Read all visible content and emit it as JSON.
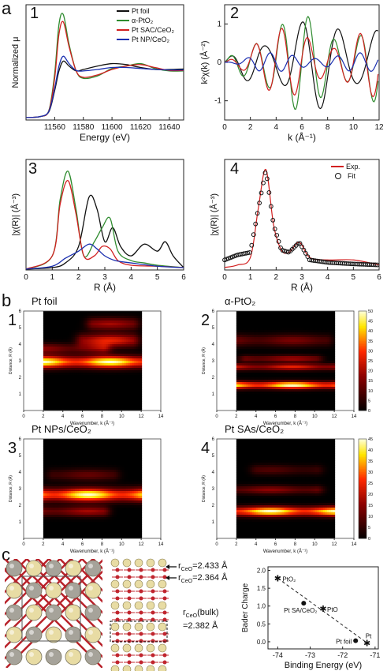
{
  "panel_a": {
    "letter": "a",
    "p1": {
      "num": "1",
      "ylabel": "Normalized μ",
      "xlabel": "Energy (eV)",
      "xticks": [
        "11560",
        "11580",
        "11600",
        "11620",
        "11640"
      ],
      "legend": [
        {
          "label": "Pt foil",
          "color": "#111111"
        },
        {
          "label": "α-PtO₂",
          "color": "#2e8b2e"
        },
        {
          "label": "Pt SAC/CeO₂",
          "color": "#d22020"
        },
        {
          "label": "Pt NP/CeO₂",
          "color": "#1a2fb0"
        }
      ]
    },
    "p2": {
      "num": "2",
      "ylabel": "k²χ(k) (Å⁻²)",
      "xlabel": "k (Å⁻¹)",
      "xticks": [
        "0",
        "2",
        "4",
        "6",
        "8",
        "10",
        "12"
      ],
      "yticks": [
        "1",
        "0",
        "-1"
      ]
    },
    "p3": {
      "num": "3",
      "ylabel": "|χ(R)| (Å⁻³)",
      "xlabel": "R (Å)",
      "xticks": [
        "0",
        "1",
        "2",
        "3",
        "4",
        "5",
        "6"
      ]
    },
    "p4": {
      "num": "4",
      "ylabel": "|χ(R)| (Å⁻³)",
      "xlabel": "R (Å)",
      "xticks": [
        "0",
        "1",
        "2",
        "3",
        "4",
        "5",
        "6"
      ],
      "legend": [
        {
          "label": "Exp.",
          "color": "#d22020"
        },
        {
          "label": "Fit",
          "color": "#111111"
        }
      ]
    }
  },
  "panel_b": {
    "letter": "b",
    "maps": [
      {
        "num": "1",
        "title": "Pt foil"
      },
      {
        "num": "2",
        "title": "α-PtO₂"
      },
      {
        "num": "3",
        "title": "Pt NPs/CeO₂"
      },
      {
        "num": "4",
        "title": "Pt SAs/CeO₂"
      }
    ],
    "xlabel": "Wavenumber, k (Å⁻¹)",
    "ylabel": "Distance, R (Å)",
    "xticks": [
      "0",
      "2",
      "4",
      "6",
      "8",
      "10",
      "12",
      "14"
    ],
    "yticks": [
      "1",
      "2",
      "3",
      "4",
      "5",
      "6"
    ],
    "colorbar_ticks": [
      "50",
      "45",
      "40",
      "35",
      "30",
      "25",
      "20",
      "15",
      "10",
      "5",
      "0"
    ],
    "colorbar_ticks_lower": [
      "45",
      "40",
      "35",
      "30",
      "25",
      "20",
      "15",
      "10",
      "5",
      "0"
    ]
  },
  "panel_c": {
    "letter": "c",
    "ann1": "r",
    "ann1_sub": "CeO",
    "ann1_val": "=2.433 Å",
    "ann2": "r",
    "ann2_sub": "CeO",
    "ann2_val": "=2.364 Å",
    "ann3": "r",
    "ann3_sub": "CeO",
    "ann3_val": "(bulk)",
    "ann3_val2": "=2.382 Å",
    "chart": {
      "ylabel": "Bader Charge",
      "xlabel": "Binding Energy (eV)",
      "xticks": [
        "-74",
        "-73",
        "-72",
        "-71"
      ],
      "yticks": [
        "0.0",
        "0.5",
        "1.0",
        "1.5",
        "2.0"
      ],
      "points": [
        {
          "label": "PtO₂",
          "marker": "star"
        },
        {
          "label": "Pt SA/CeO₂",
          "marker": "dot"
        },
        {
          "label": "PtO",
          "marker": "star"
        },
        {
          "label": "Pt foil",
          "marker": "dot"
        },
        {
          "label": "Pt",
          "marker": "star"
        }
      ]
    }
  },
  "chart_data": [
    {
      "type": "line",
      "xlabel": "Energy (eV)",
      "ylabel": "Normalized μ",
      "xlim": [
        11540,
        11650
      ],
      "series": [
        {
          "name": "Pt foil",
          "x": [
            11540,
            11550,
            11556,
            11560,
            11563,
            11566,
            11570,
            11575,
            11580,
            11590,
            11600,
            11610,
            11620,
            11630,
            11640,
            11650
          ],
          "y": [
            0.0,
            0.02,
            0.12,
            0.55,
            0.95,
            1.15,
            1.05,
            0.95,
            0.98,
            1.05,
            1.1,
            1.08,
            1.02,
            0.98,
            0.98,
            0.99
          ]
        },
        {
          "name": "α-PtO₂",
          "x": [
            11540,
            11550,
            11556,
            11560,
            11563,
            11566,
            11570,
            11575,
            11580,
            11590,
            11600,
            11610,
            11620,
            11630,
            11640,
            11650
          ],
          "y": [
            0.0,
            0.02,
            0.15,
            0.9,
            1.9,
            2.1,
            1.5,
            0.95,
            0.8,
            0.85,
            1.0,
            1.05,
            1.1,
            1.0,
            0.95,
            0.95
          ]
        },
        {
          "name": "Pt SAC/CeO₂",
          "x": [
            11540,
            11550,
            11556,
            11560,
            11563,
            11566,
            11570,
            11575,
            11580,
            11590,
            11600,
            11610,
            11620,
            11630,
            11640,
            11650
          ],
          "y": [
            0.0,
            0.02,
            0.14,
            0.8,
            1.7,
            1.95,
            1.45,
            0.95,
            0.82,
            0.87,
            0.98,
            1.05,
            1.08,
            1.02,
            0.96,
            0.96
          ]
        },
        {
          "name": "Pt NP/CeO₂",
          "x": [
            11540,
            11550,
            11556,
            11560,
            11563,
            11566,
            11570,
            11575,
            11580,
            11590,
            11600,
            11610,
            11620,
            11630,
            11640,
            11650
          ],
          "y": [
            0.0,
            0.02,
            0.13,
            0.6,
            1.05,
            1.25,
            1.1,
            0.96,
            0.95,
            0.98,
            1.02,
            1.02,
            1.0,
            0.98,
            0.97,
            0.97
          ]
        }
      ]
    },
    {
      "type": "line",
      "xlabel": "k (Å⁻¹)",
      "ylabel": "k²χ(k) (Å⁻²)",
      "xlim": [
        0,
        12
      ],
      "ylim": [
        -1.5,
        1.5
      ]
    },
    {
      "type": "line",
      "xlabel": "R (Å)",
      "ylabel": "|χ(R)| (Å⁻³)",
      "xlim": [
        0,
        6
      ],
      "series": [
        {
          "name": "Pt foil",
          "x": [
            0,
            1,
            1.5,
            2,
            2.4,
            2.7,
            3,
            3.3,
            3.6,
            4,
            4.5,
            5,
            5.3,
            5.6,
            6
          ],
          "y": [
            0.02,
            0.05,
            0.15,
            0.5,
            1.55,
            1.3,
            0.6,
            0.9,
            0.5,
            0.3,
            0.55,
            0.4,
            0.6,
            0.3,
            0.05
          ]
        },
        {
          "name": "α-PtO₂",
          "x": [
            0,
            1,
            1.3,
            1.6,
            1.9,
            2.2,
            2.6,
            2.9,
            3.2,
            3.5,
            4,
            4.5,
            5,
            6
          ],
          "y": [
            0.02,
            0.3,
            1.5,
            2.1,
            1.3,
            0.3,
            0.6,
            0.9,
            1.1,
            0.4,
            0.2,
            0.15,
            0.1,
            0.05
          ]
        },
        {
          "name": "Pt SAC/CeO₂",
          "x": [
            0,
            1,
            1.3,
            1.6,
            1.9,
            2.2,
            2.6,
            2.9,
            3.2,
            3.5,
            4,
            5,
            6
          ],
          "y": [
            0.02,
            0.3,
            1.4,
            1.9,
            1.2,
            0.3,
            0.3,
            0.5,
            0.45,
            0.2,
            0.1,
            0.08,
            0.05
          ]
        },
        {
          "name": "Pt NP/CeO₂",
          "x": [
            0,
            1,
            1.5,
            2,
            2.4,
            2.7,
            3,
            3.4,
            4,
            5,
            6
          ],
          "y": [
            0.02,
            0.08,
            0.25,
            0.4,
            0.55,
            0.45,
            0.3,
            0.2,
            0.15,
            0.08,
            0.05
          ]
        }
      ]
    },
    {
      "type": "scatter",
      "xlabel": "R (Å)",
      "ylabel": "|χ(R)| (Å⁻³)",
      "xlim": [
        0,
        6
      ],
      "series": [
        {
          "name": "Exp.",
          "x": [
            0,
            0.5,
            1,
            1.3,
            1.6,
            1.9,
            2.2,
            2.5,
            2.9,
            3.3,
            4,
            5,
            6
          ],
          "y": [
            0.05,
            0.1,
            0.25,
            1.2,
            2.0,
            0.9,
            0.4,
            0.35,
            0.55,
            0.25,
            0.2,
            0.2,
            0.1
          ]
        },
        {
          "name": "Fit",
          "x": [
            0,
            0.5,
            1,
            1.3,
            1.6,
            1.9,
            2.2,
            2.5,
            2.9,
            3.3,
            4,
            5,
            6
          ],
          "y": [
            0.2,
            0.3,
            0.35,
            1.2,
            2.0,
            0.9,
            0.4,
            0.35,
            0.55,
            0.2,
            0.15,
            0.12,
            0.1
          ]
        }
      ]
    },
    {
      "type": "scatter",
      "xlabel": "Binding Energy (eV)",
      "ylabel": "Bader Charge",
      "xlim": [
        -74.3,
        -70.9
      ],
      "ylim": [
        -0.2,
        2.1
      ],
      "points": [
        {
          "label": "PtO₂",
          "x": -74.0,
          "y": 1.78
        },
        {
          "label": "Pt SA/CeO₂",
          "x": -73.2,
          "y": 1.08
        },
        {
          "label": "PtO",
          "x": -72.6,
          "y": 0.93
        },
        {
          "label": "Pt foil",
          "x": -71.6,
          "y": 0.03
        },
        {
          "label": "Pt",
          "x": -71.25,
          "y": -0.03
        }
      ]
    }
  ]
}
